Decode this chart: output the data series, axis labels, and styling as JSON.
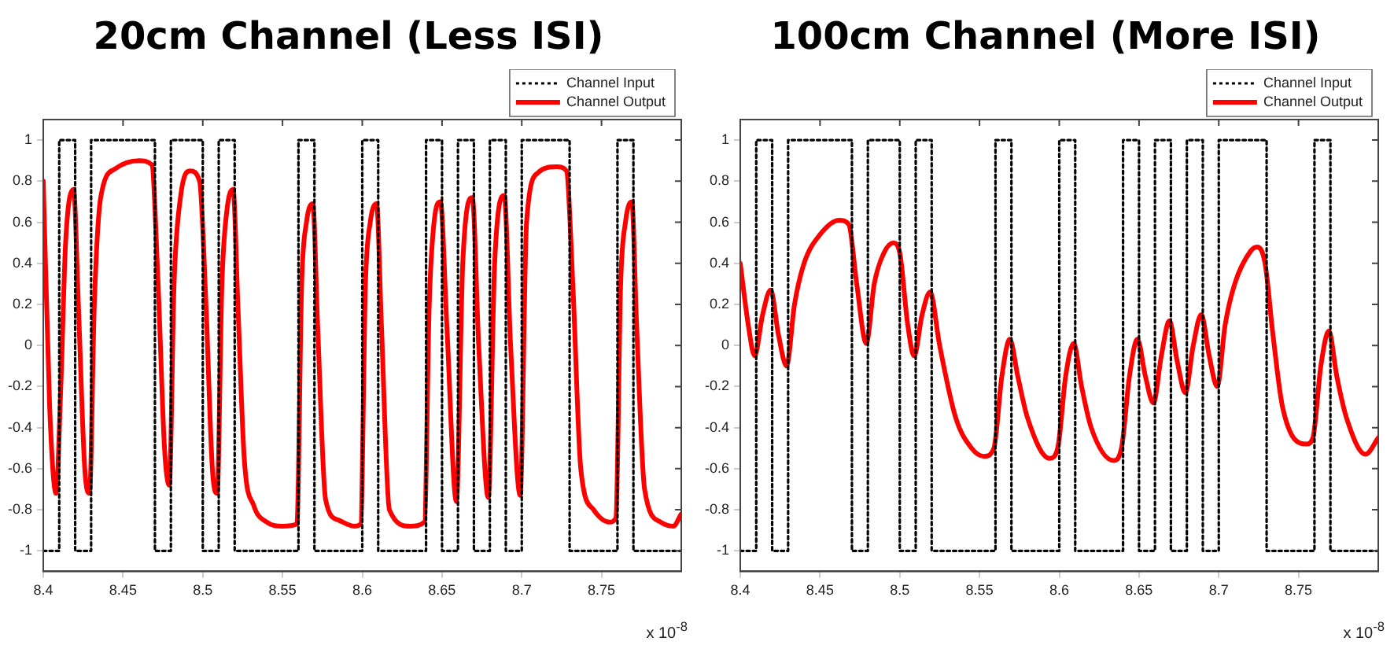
{
  "chart_data": [
    {
      "type": "line",
      "title": "20cm Channel (Less ISI)",
      "annotations": [
        "x 10$^{-8}$"
      ],
      "xlim": [
        8.4,
        8.8
      ],
      "xticks": [
        8.4,
        8.45,
        8.5,
        8.55,
        8.6,
        8.65,
        8.7,
        8.75
      ],
      "ylim": [
        -1.1,
        1.1
      ],
      "yticks": [
        -1,
        -0.8,
        -0.6,
        -0.4,
        -0.2,
        0,
        0.2,
        0.4,
        0.6,
        0.8,
        1
      ],
      "grid": false,
      "legend": "top right",
      "marker": "none",
      "series": [
        {
          "name": "Channel Input",
          "type": "step",
          "color": "#000000",
          "line_style": "dotted",
          "x": [
            8.4,
            8.41,
            8.42,
            8.43,
            8.47,
            8.48,
            8.5,
            8.51,
            8.52,
            8.56,
            8.57,
            8.6,
            8.61,
            8.64,
            8.65,
            8.66,
            8.67,
            8.68,
            8.69,
            8.7,
            8.73,
            8.76,
            8.77,
            8.8
          ],
          "values": [
            -1,
            1,
            -1,
            1,
            -1,
            1,
            -1,
            1,
            -1,
            1,
            -1,
            1,
            -1,
            1,
            -1,
            1,
            -1,
            1,
            -1,
            1,
            -1,
            1,
            -1,
            -1
          ]
        },
        {
          "name": "Channel Output",
          "type": "line",
          "color": "#ff0000",
          "line_style": "solid",
          "x": [
            8.4,
            8.404,
            8.408,
            8.411,
            8.414,
            8.419,
            8.422,
            8.426,
            8.429,
            8.432,
            8.436,
            8.445,
            8.46,
            8.468,
            8.472,
            8.476,
            8.479,
            8.482,
            8.486,
            8.492,
            8.498,
            8.502,
            8.506,
            8.509,
            8.512,
            8.515,
            8.519,
            8.522,
            8.526,
            8.532,
            8.54,
            8.55,
            8.559,
            8.562,
            8.565,
            8.569,
            8.572,
            8.577,
            8.585,
            8.595,
            8.599,
            8.602,
            8.605,
            8.609,
            8.612,
            8.617,
            8.63,
            8.639,
            8.642,
            8.645,
            8.649,
            8.653,
            8.659,
            8.663,
            8.669,
            8.673,
            8.679,
            8.683,
            8.689,
            8.693,
            8.699,
            8.703,
            8.71,
            8.722,
            8.728,
            8.732,
            8.737,
            8.745,
            8.755,
            8.759,
            8.762,
            8.765,
            8.769,
            8.772,
            8.777,
            8.787,
            8.795,
            8.8
          ],
          "values": [
            0.8,
            -0.3,
            -0.72,
            -0.2,
            0.5,
            0.76,
            0.2,
            -0.6,
            -0.72,
            0.2,
            0.72,
            0.86,
            0.9,
            0.88,
            0.3,
            -0.5,
            -0.68,
            0.3,
            0.72,
            0.85,
            0.8,
            0.2,
            -0.6,
            -0.72,
            0.3,
            0.65,
            0.76,
            0.2,
            -0.55,
            -0.78,
            -0.86,
            -0.88,
            -0.87,
            0.3,
            0.6,
            0.69,
            0.1,
            -0.75,
            -0.85,
            -0.88,
            -0.87,
            0.3,
            0.6,
            0.69,
            0.1,
            -0.8,
            -0.88,
            -0.86,
            0.2,
            0.6,
            0.7,
            0.1,
            -0.76,
            0.4,
            0.72,
            0,
            -0.74,
            0.4,
            0.73,
            0,
            -0.73,
            0.6,
            0.84,
            0.87,
            0.85,
            0.3,
            -0.6,
            -0.8,
            -0.86,
            -0.84,
            0.3,
            0.6,
            0.7,
            0.1,
            -0.7,
            -0.86,
            -0.88,
            -0.82
          ]
        }
      ]
    },
    {
      "type": "line",
      "title": "100cm Channel (More ISI)",
      "annotations": [
        "x 10$^{-8}$"
      ],
      "xlim": [
        8.4,
        8.8
      ],
      "xticks": [
        8.4,
        8.45,
        8.5,
        8.55,
        8.6,
        8.65,
        8.7,
        8.75
      ],
      "ylim": [
        -1.1,
        1.1
      ],
      "yticks": [
        -1,
        -0.8,
        -0.6,
        -0.4,
        -0.2,
        0,
        0.2,
        0.4,
        0.6,
        0.8,
        1
      ],
      "grid": false,
      "legend": "top right",
      "marker": "none",
      "series": [
        {
          "name": "Channel Input",
          "type": "step",
          "color": "#000000",
          "line_style": "dotted",
          "x": [
            8.4,
            8.41,
            8.42,
            8.43,
            8.47,
            8.48,
            8.5,
            8.51,
            8.52,
            8.56,
            8.57,
            8.6,
            8.61,
            8.64,
            8.65,
            8.66,
            8.67,
            8.68,
            8.69,
            8.7,
            8.73,
            8.76,
            8.77,
            8.8
          ],
          "values": [
            -1,
            1,
            -1,
            1,
            -1,
            1,
            -1,
            1,
            -1,
            1,
            -1,
            1,
            -1,
            1,
            -1,
            1,
            -1,
            1,
            -1,
            1,
            -1,
            1,
            -1,
            -1
          ]
        },
        {
          "name": "Channel Output",
          "type": "line",
          "color": "#ff0000",
          "line_style": "solid",
          "x": [
            8.4,
            8.405,
            8.409,
            8.414,
            8.419,
            8.424,
            8.429,
            8.434,
            8.44,
            8.45,
            8.462,
            8.468,
            8.473,
            8.479,
            8.484,
            8.49,
            8.496,
            8.5,
            8.505,
            8.509,
            8.514,
            8.519,
            8.525,
            8.535,
            8.545,
            8.553,
            8.559,
            8.564,
            8.569,
            8.574,
            8.58,
            8.594,
            8.599,
            8.604,
            8.609,
            8.614,
            8.62,
            8.634,
            8.639,
            8.644,
            8.649,
            8.654,
            8.659,
            8.664,
            8.669,
            8.674,
            8.679,
            8.684,
            8.689,
            8.694,
            8.699,
            8.704,
            8.71,
            8.72,
            8.724,
            8.729,
            8.734,
            8.74,
            8.755,
            8.759,
            8.764,
            8.769,
            8.774,
            8.78,
            8.792,
            8.8
          ],
          "values": [
            0.4,
            0.1,
            -0.05,
            0.15,
            0.27,
            0.05,
            -0.1,
            0.2,
            0.4,
            0.54,
            0.61,
            0.59,
            0.3,
            0.01,
            0.3,
            0.45,
            0.5,
            0.45,
            0.1,
            -0.05,
            0.15,
            0.26,
            0,
            -0.35,
            -0.5,
            -0.54,
            -0.5,
            -0.15,
            0.03,
            -0.15,
            -0.35,
            -0.55,
            -0.5,
            -0.15,
            0.01,
            -0.2,
            -0.4,
            -0.56,
            -0.5,
            -0.15,
            0.03,
            -0.15,
            -0.28,
            -0.05,
            0.12,
            -0.08,
            -0.23,
            0,
            0.15,
            -0.05,
            -0.2,
            0.1,
            0.3,
            0.46,
            0.48,
            0.4,
            0.05,
            -0.3,
            -0.48,
            -0.45,
            -0.1,
            0.07,
            -0.15,
            -0.35,
            -0.53,
            -0.45
          ]
        }
      ]
    }
  ]
}
